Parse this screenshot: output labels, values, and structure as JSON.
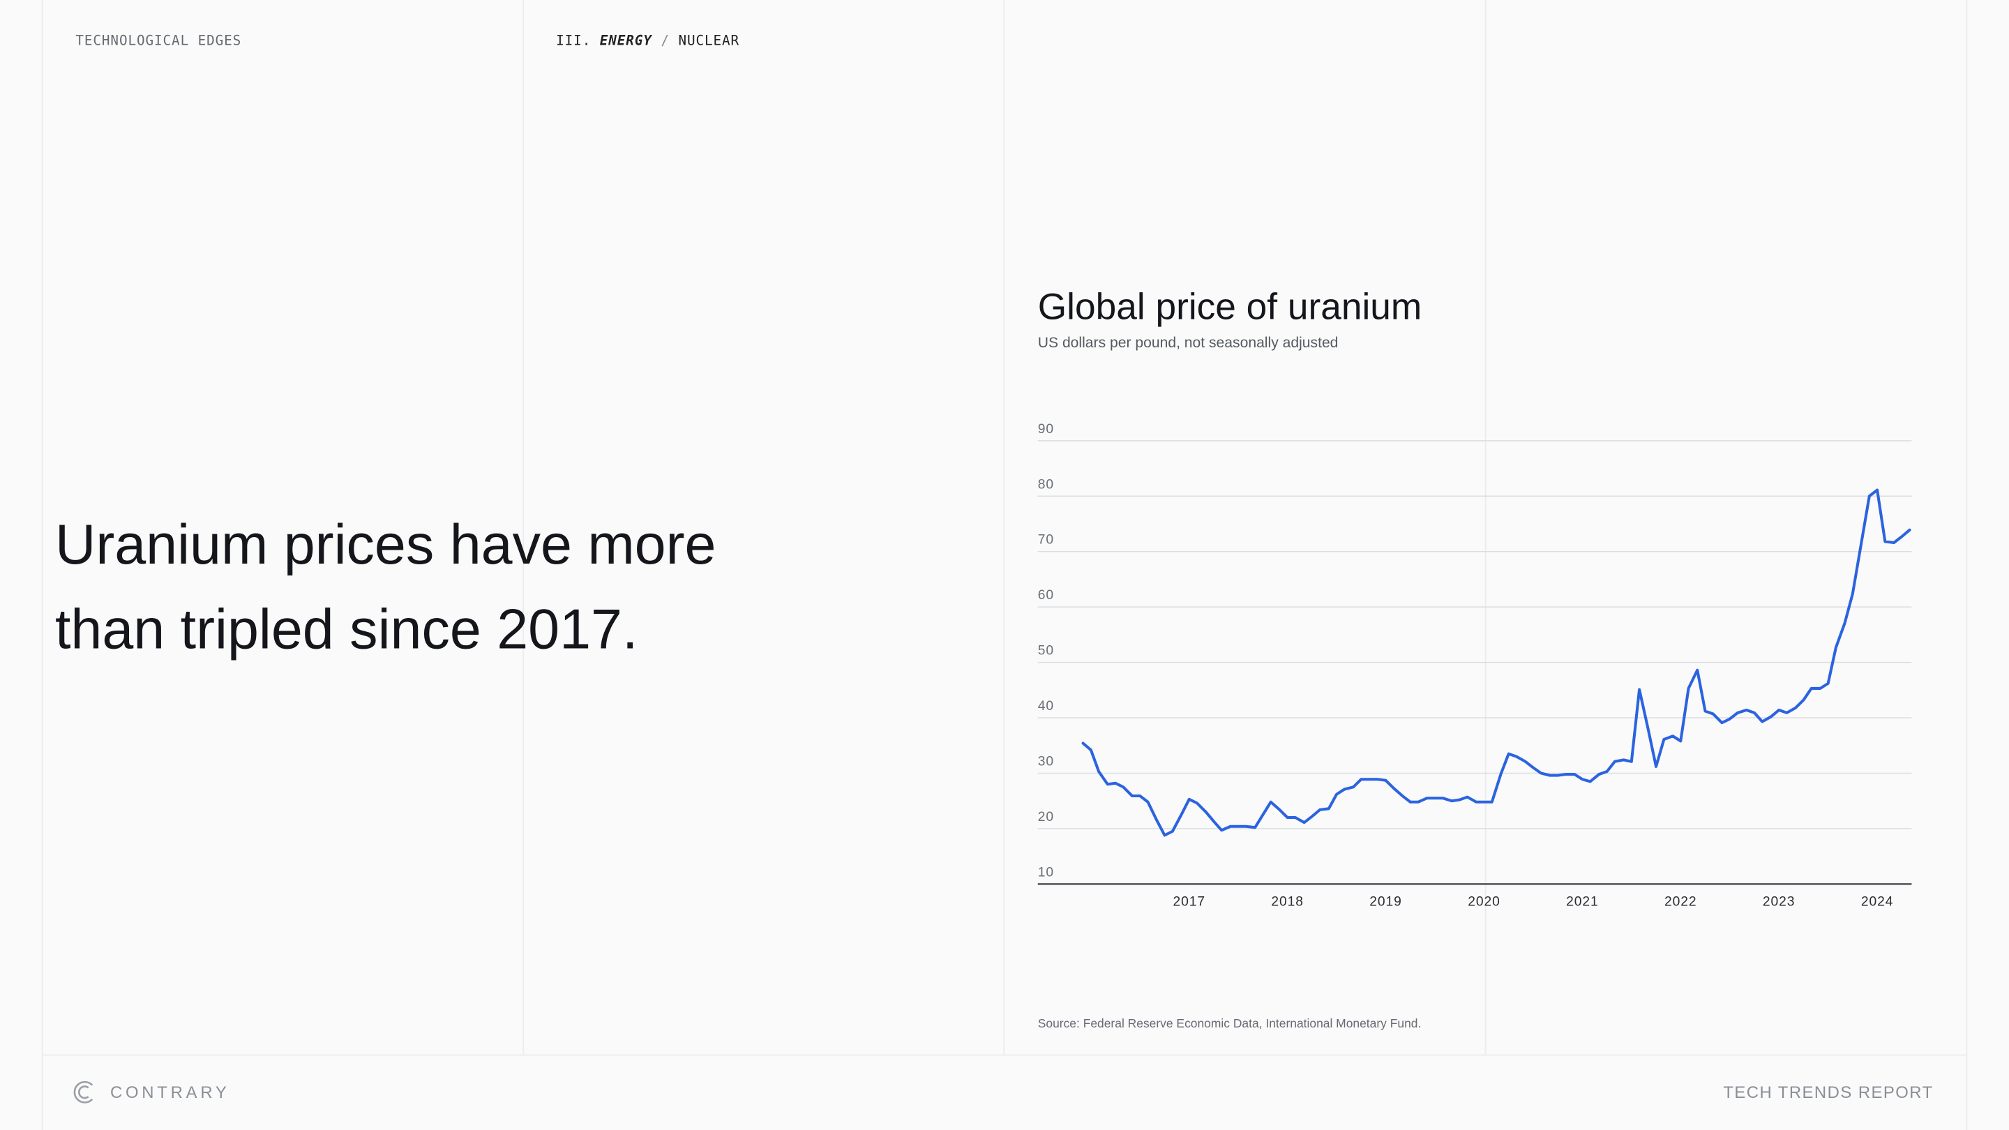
{
  "header": {
    "section": "TECHNOLOGICAL EDGES",
    "breadcrumb": [
      "III.",
      "ENERGY",
      "/",
      "NUCLEAR"
    ]
  },
  "headline": [
    "Uranium prices have more",
    "than tripled since 2017."
  ],
  "chart_data": {
    "type": "line",
    "title": "Global price of uranium",
    "subtitle": "US dollars per pound, not seasonally adjusted",
    "source": "Source: Federal Reserve Economic Data, International Monetary Fund.",
    "color": "#2b63e0",
    "x": [
      2015.92,
      2016.0,
      2016.08,
      2016.17,
      2016.25,
      2016.33,
      2016.42,
      2016.5,
      2016.58,
      2016.67,
      2016.75,
      2016.83,
      2016.92,
      2017.0,
      2017.08,
      2017.17,
      2017.25,
      2017.33,
      2017.42,
      2017.5,
      2017.58,
      2017.67,
      2017.75,
      2017.83,
      2017.92,
      2018.0,
      2018.08,
      2018.17,
      2018.25,
      2018.33,
      2018.42,
      2018.5,
      2018.58,
      2018.67,
      2018.75,
      2018.83,
      2018.92,
      2019.0,
      2019.08,
      2019.17,
      2019.25,
      2019.33,
      2019.42,
      2019.5,
      2019.58,
      2019.67,
      2019.75,
      2019.83,
      2019.92,
      2020.0,
      2020.08,
      2020.17,
      2020.25,
      2020.33,
      2020.42,
      2020.5,
      2020.58,
      2020.67,
      2020.75,
      2020.83,
      2020.92,
      2021.0,
      2021.08,
      2021.17,
      2021.25,
      2021.33,
      2021.42,
      2021.5,
      2021.58,
      2021.67,
      2021.75,
      2021.83,
      2021.92,
      2022.0,
      2022.08,
      2022.17,
      2022.25,
      2022.33,
      2022.42,
      2022.5,
      2022.58,
      2022.67,
      2022.75,
      2022.83,
      2022.92,
      2023.0,
      2023.08,
      2023.17,
      2023.25,
      2023.33,
      2023.42,
      2023.5,
      2023.58,
      2023.67,
      2023.75,
      2023.83,
      2023.92,
      2024.0,
      2024.08,
      2024.17,
      2024.25,
      2024.33
    ],
    "values": [
      35.4,
      34.2,
      30.3,
      28,
      28.2,
      27.5,
      25.9,
      25.9,
      24.8,
      21.5,
      18.8,
      19.5,
      22.5,
      25.3,
      24.6,
      23,
      21.3,
      19.7,
      20.4,
      20.4,
      20.4,
      20.2,
      22.5,
      24.8,
      23.4,
      22,
      22,
      21.1,
      22.2,
      23.4,
      23.6,
      26.2,
      27.1,
      27.5,
      28.9,
      28.9,
      28.9,
      28.7,
      27.3,
      25.9,
      24.8,
      24.8,
      25.5,
      25.5,
      25.5,
      25,
      25.2,
      25.7,
      24.8,
      24.8,
      24.8,
      29.8,
      33.5,
      33,
      32.1,
      31,
      30,
      29.6,
      29.6,
      29.8,
      29.8,
      28.9,
      28.5,
      29.8,
      30.3,
      32.1,
      32.4,
      32.1,
      45.1,
      37.9,
      31.2,
      36.1,
      36.7,
      35.8,
      45.3,
      48.6,
      41.2,
      40.7,
      39.1,
      39.8,
      40.9,
      41.4,
      40.9,
      39.3,
      40.2,
      41.4,
      40.9,
      41.8,
      43.2,
      45.3,
      45.3,
      46.2,
      52.7,
      57.1,
      62.4,
      70.7,
      80,
      81.1,
      71.8,
      71.6,
      72.7,
      73.9
    ],
    "xlim": [
      2015.46,
      2024.35
    ],
    "xticks": [
      2017,
      2018,
      2019,
      2020,
      2021,
      2022,
      2023,
      2024
    ],
    "ylim": [
      10,
      90
    ],
    "yticks": [
      10,
      20,
      30,
      40,
      50,
      60,
      70,
      80,
      90
    ],
    "grid": true
  },
  "footer": {
    "brand": "CONTRARY",
    "report": "TECH TRENDS REPORT"
  }
}
